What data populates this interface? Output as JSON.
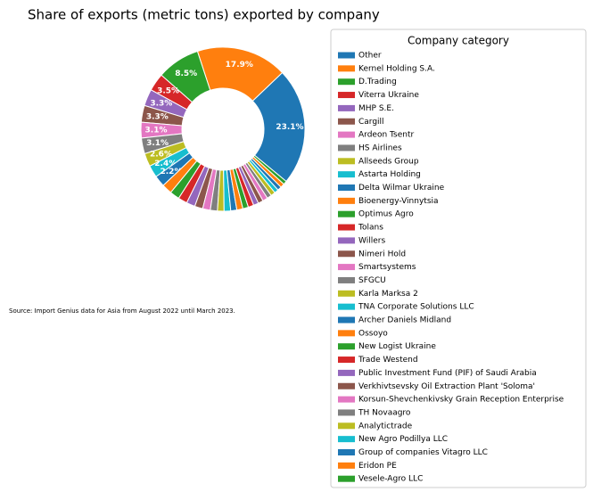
{
  "chart_data": {
    "type": "donut",
    "title": "Share of exports (metric tons) exported by company",
    "source": "Source: Import Genius data for Asia from August 2022 until March 2023.",
    "legend_title": "Company category",
    "categories": [
      "Other",
      "Kernel Holding S.A.",
      "D.Trading",
      "Viterra Ukraine",
      "MHP S.E.",
      "Cargill",
      "Ardeon Tsentr",
      "HS Airlines",
      "Allseeds Group",
      "Astarta Holding",
      "Delta Wilmar Ukraine",
      "Bioenergy-Vinnytsia",
      "Optimus Agro",
      "Tolans",
      "Willers",
      "Nimeri Hold",
      "Smartsystems",
      "SFGCU",
      "Karla Marksa 2",
      "TNA Corporate Solutions LLC",
      "Archer Daniels Midland",
      "Ossoyo",
      "New Logist Ukraine",
      "Trade Westend",
      "Public Investment Fund (PIF) of Saudi Arabia",
      "Verkhivtsevsky Oil Extraction Plant 'Soloma'",
      "Korsun-Shevchenkivsky Grain Reception Enterprise",
      "TH Novaagro",
      "Analytictrade",
      "New Agro Podillya LLC",
      "Group of companies Vitagro LLC",
      "Eridon PE",
      "Vesele-Agro LLC"
    ],
    "values": [
      23.1,
      17.9,
      8.5,
      3.5,
      3.3,
      3.3,
      3.1,
      3.1,
      2.6,
      2.4,
      2.2,
      2.0,
      1.9,
      1.8,
      1.7,
      1.6,
      1.5,
      1.4,
      1.3,
      1.3,
      1.2,
      1.2,
      1.1,
      1.1,
      1.0,
      1.0,
      1.0,
      0.9,
      0.9,
      0.8,
      0.8,
      0.8,
      0.7
    ],
    "value_labels": [
      "23.1%",
      "17.9%",
      "8.5%",
      "3.5%",
      "3.3%",
      "3.3%",
      "3.1%",
      "3.1%",
      "2.6%",
      "2.4%",
      "2.2%",
      null,
      null,
      null,
      null,
      null,
      null,
      null,
      null,
      null,
      null,
      null,
      null,
      null,
      null,
      null,
      null,
      null,
      null,
      null,
      null,
      null,
      null
    ],
    "colors": [
      "#1f77b4",
      "#ff7f0e",
      "#2ca02c",
      "#d62728",
      "#9467bd",
      "#8c564b",
      "#e377c2",
      "#7f7f7f",
      "#bcbd22",
      "#17becf"
    ]
  }
}
